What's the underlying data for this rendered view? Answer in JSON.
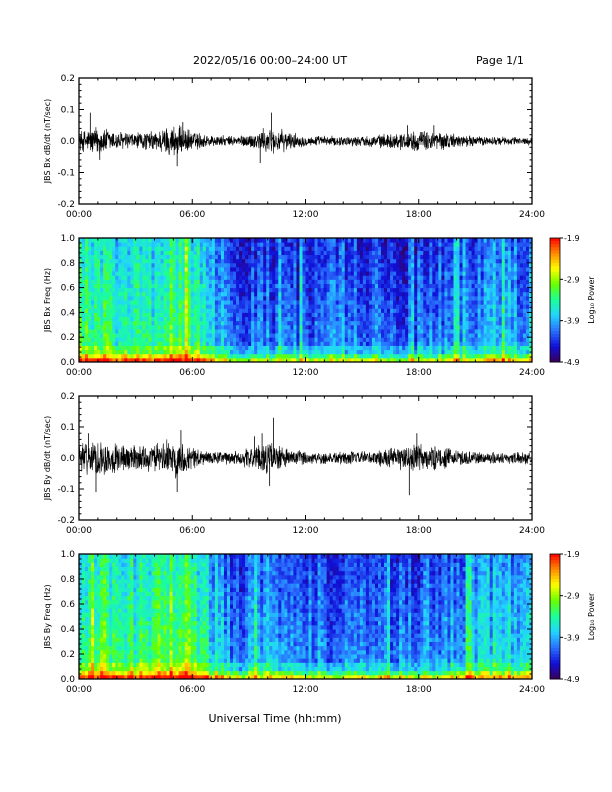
{
  "header": {
    "title": "2022/05/16  00:00–24:00 UT",
    "page": "Page 1/1"
  },
  "footer": {
    "xlabel": "Universal Time (hh:mm)"
  },
  "colors": {
    "background": "#ffffff",
    "trace": "#000000",
    "colormap": [
      "#3a0057",
      "#1010d8",
      "#2a70ff",
      "#22d4ff",
      "#1aff9a",
      "#66ff00",
      "#ffff00",
      "#ff8c00",
      "#ff0000"
    ]
  },
  "chart_data": [
    {
      "type": "line",
      "ylabel": "JBS Bx dB/dt (nT/sec)",
      "x_ticks": [
        "00:00",
        "06:00",
        "12:00",
        "18:00",
        "24:00"
      ],
      "xlim": [
        0,
        24
      ],
      "ylim": [
        -0.2,
        0.2
      ],
      "y_ticks": [
        "-0.2",
        "-0.1",
        "0.0",
        "0.1",
        "0.2"
      ],
      "series": [
        {
          "description_values": "noise envelope (amplitude, nT/sec) vs hour",
          "x": [
            0,
            1,
            2,
            3,
            4,
            5,
            6,
            7,
            8,
            9,
            10,
            11,
            12,
            13,
            14,
            15,
            16,
            17,
            18,
            19,
            20,
            21,
            22,
            23,
            24
          ],
          "envelope": [
            0.03,
            0.045,
            0.03,
            0.025,
            0.03,
            0.05,
            0.03,
            0.018,
            0.015,
            0.02,
            0.04,
            0.03,
            0.015,
            0.015,
            0.015,
            0.015,
            0.02,
            0.025,
            0.03,
            0.03,
            0.02,
            0.015,
            0.013,
            0.012,
            0.012
          ],
          "spikes": [
            [
              0.6,
              0.09
            ],
            [
              1.1,
              -0.06
            ],
            [
              5.2,
              -0.08
            ],
            [
              5.5,
              0.06
            ],
            [
              9.6,
              -0.07
            ],
            [
              10.2,
              0.09
            ],
            [
              17.4,
              0.05
            ],
            [
              18.8,
              0.05
            ]
          ]
        }
      ]
    },
    {
      "type": "heatmap",
      "ylabel": "JBS Bx Freq (Hz)",
      "x_ticks": [
        "00:00",
        "06:00",
        "12:00",
        "18:00",
        "24:00"
      ],
      "xlim": [
        0,
        24
      ],
      "ylim": [
        0,
        1.0
      ],
      "y_ticks": [
        "0.0",
        "0.2",
        "0.4",
        "0.6",
        "0.8",
        "1.0"
      ],
      "colorbar": {
        "label": "Log₁₀ Power",
        "ticks": [
          "-1.9",
          "-2.9",
          "-3.9",
          "-4.9"
        ],
        "range": [
          -4.9,
          -1.9
        ]
      },
      "activity_by_hour": [
        0.55,
        0.55,
        0.52,
        0.5,
        0.52,
        0.62,
        0.55,
        0.45,
        0.25,
        0.28,
        0.3,
        0.27,
        0.25,
        0.28,
        0.3,
        0.27,
        0.25,
        0.25,
        0.27,
        0.28,
        0.32,
        0.35,
        0.38,
        0.35,
        0.35
      ]
    },
    {
      "type": "line",
      "ylabel": "JBS By dB/dt (nT/sec)",
      "x_ticks": [
        "00:00",
        "06:00",
        "12:00",
        "18:00",
        "24:00"
      ],
      "xlim": [
        0,
        24
      ],
      "ylim": [
        -0.2,
        0.2
      ],
      "y_ticks": [
        "-0.2",
        "-0.1",
        "0.0",
        "0.1",
        "0.2"
      ],
      "series": [
        {
          "x": [
            0,
            1,
            2,
            3,
            4,
            5,
            6,
            7,
            8,
            9,
            10,
            11,
            12,
            13,
            14,
            15,
            16,
            17,
            18,
            19,
            20,
            21,
            22,
            23,
            24
          ],
          "envelope": [
            0.04,
            0.06,
            0.045,
            0.04,
            0.04,
            0.06,
            0.035,
            0.02,
            0.02,
            0.03,
            0.05,
            0.03,
            0.02,
            0.02,
            0.02,
            0.02,
            0.025,
            0.035,
            0.045,
            0.035,
            0.025,
            0.02,
            0.018,
            0.018,
            0.018
          ],
          "spikes": [
            [
              0.5,
              0.08
            ],
            [
              0.9,
              -0.11
            ],
            [
              5.2,
              -0.11
            ],
            [
              5.4,
              0.09
            ],
            [
              9.3,
              0.07
            ],
            [
              9.7,
              0.08
            ],
            [
              10.1,
              -0.09
            ],
            [
              10.3,
              0.13
            ],
            [
              17.5,
              -0.12
            ],
            [
              17.9,
              0.08
            ]
          ]
        }
      ]
    },
    {
      "type": "heatmap",
      "ylabel": "JBS By Freq (Hz)",
      "x_ticks": [
        "00:00",
        "06:00",
        "12:00",
        "18:00",
        "24:00"
      ],
      "xlim": [
        0,
        24
      ],
      "ylim": [
        0,
        1.0
      ],
      "y_ticks": [
        "0.0",
        "0.2",
        "0.4",
        "0.6",
        "0.8",
        "1.0"
      ],
      "colorbar": {
        "label": "Log₁₀ Power",
        "ticks": [
          "-1.9",
          "-2.9",
          "-3.9",
          "-4.9"
        ],
        "range": [
          -4.9,
          -1.9
        ]
      },
      "activity_by_hour": [
        0.58,
        0.6,
        0.58,
        0.55,
        0.56,
        0.65,
        0.58,
        0.45,
        0.3,
        0.32,
        0.35,
        0.3,
        0.28,
        0.3,
        0.32,
        0.3,
        0.28,
        0.28,
        0.3,
        0.32,
        0.36,
        0.4,
        0.42,
        0.42,
        0.4
      ]
    }
  ]
}
